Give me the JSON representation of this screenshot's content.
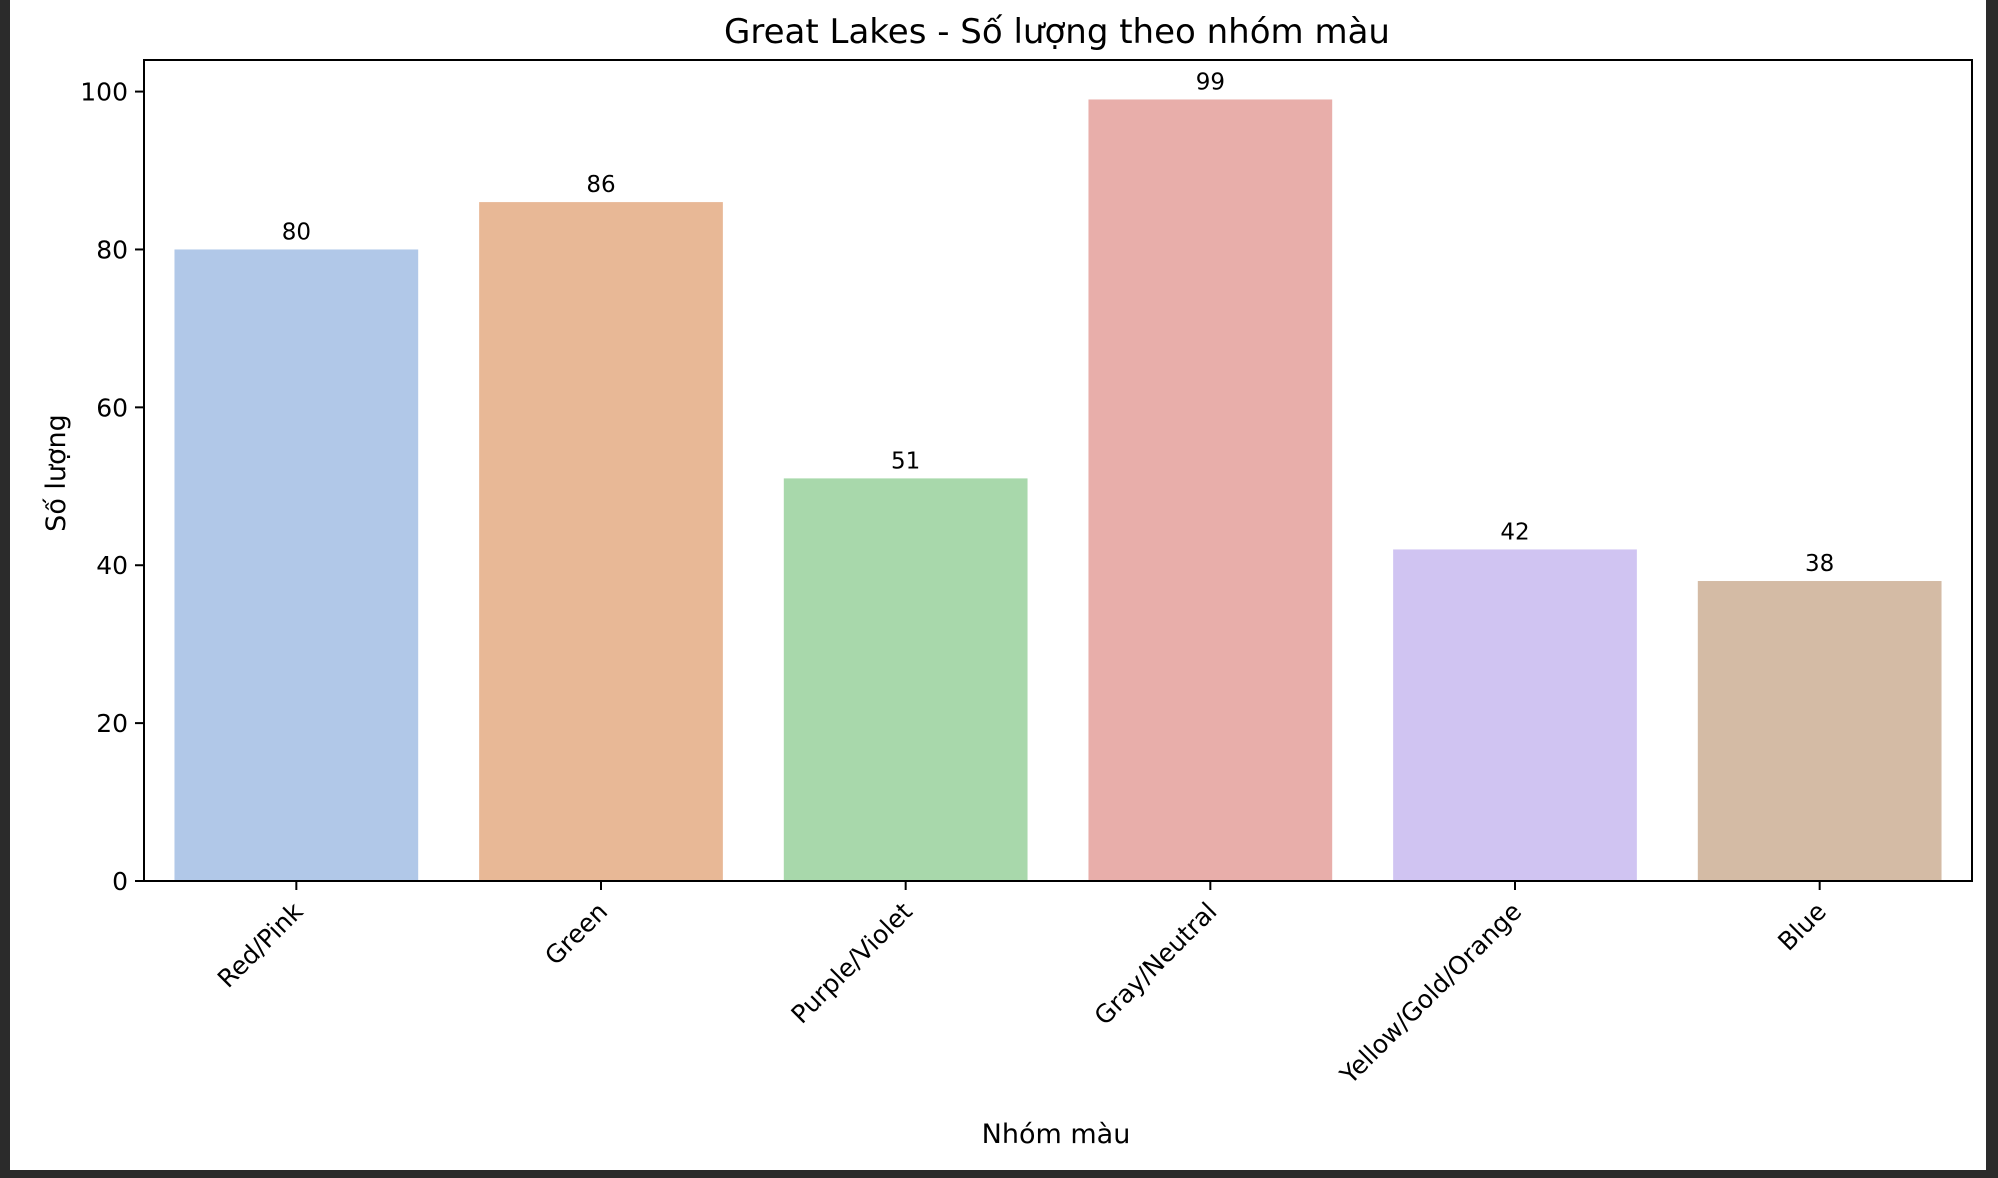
{
  "chart_data": {
    "type": "bar",
    "title": "Great Lakes - Số lượng theo nhóm màu",
    "xlabel": "Nhóm màu",
    "ylabel": "Số lượng",
    "categories": [
      "Red/Pink",
      "Green",
      "Purple/Violet",
      "Gray/Neutral",
      "Yellow/Gold/Orange",
      "Blue"
    ],
    "values": [
      80,
      86,
      51,
      99,
      42,
      38
    ],
    "colors": [
      "#b1c8e8",
      "#e8b896",
      "#a8d8ab",
      "#e8aeaa",
      "#d0c4f2",
      "#d4bba5"
    ],
    "ylim": [
      0,
      104
    ],
    "yticks": [
      "0",
      "20",
      "40",
      "60",
      "80",
      "100"
    ],
    "grid": false,
    "data_labels": true
  }
}
